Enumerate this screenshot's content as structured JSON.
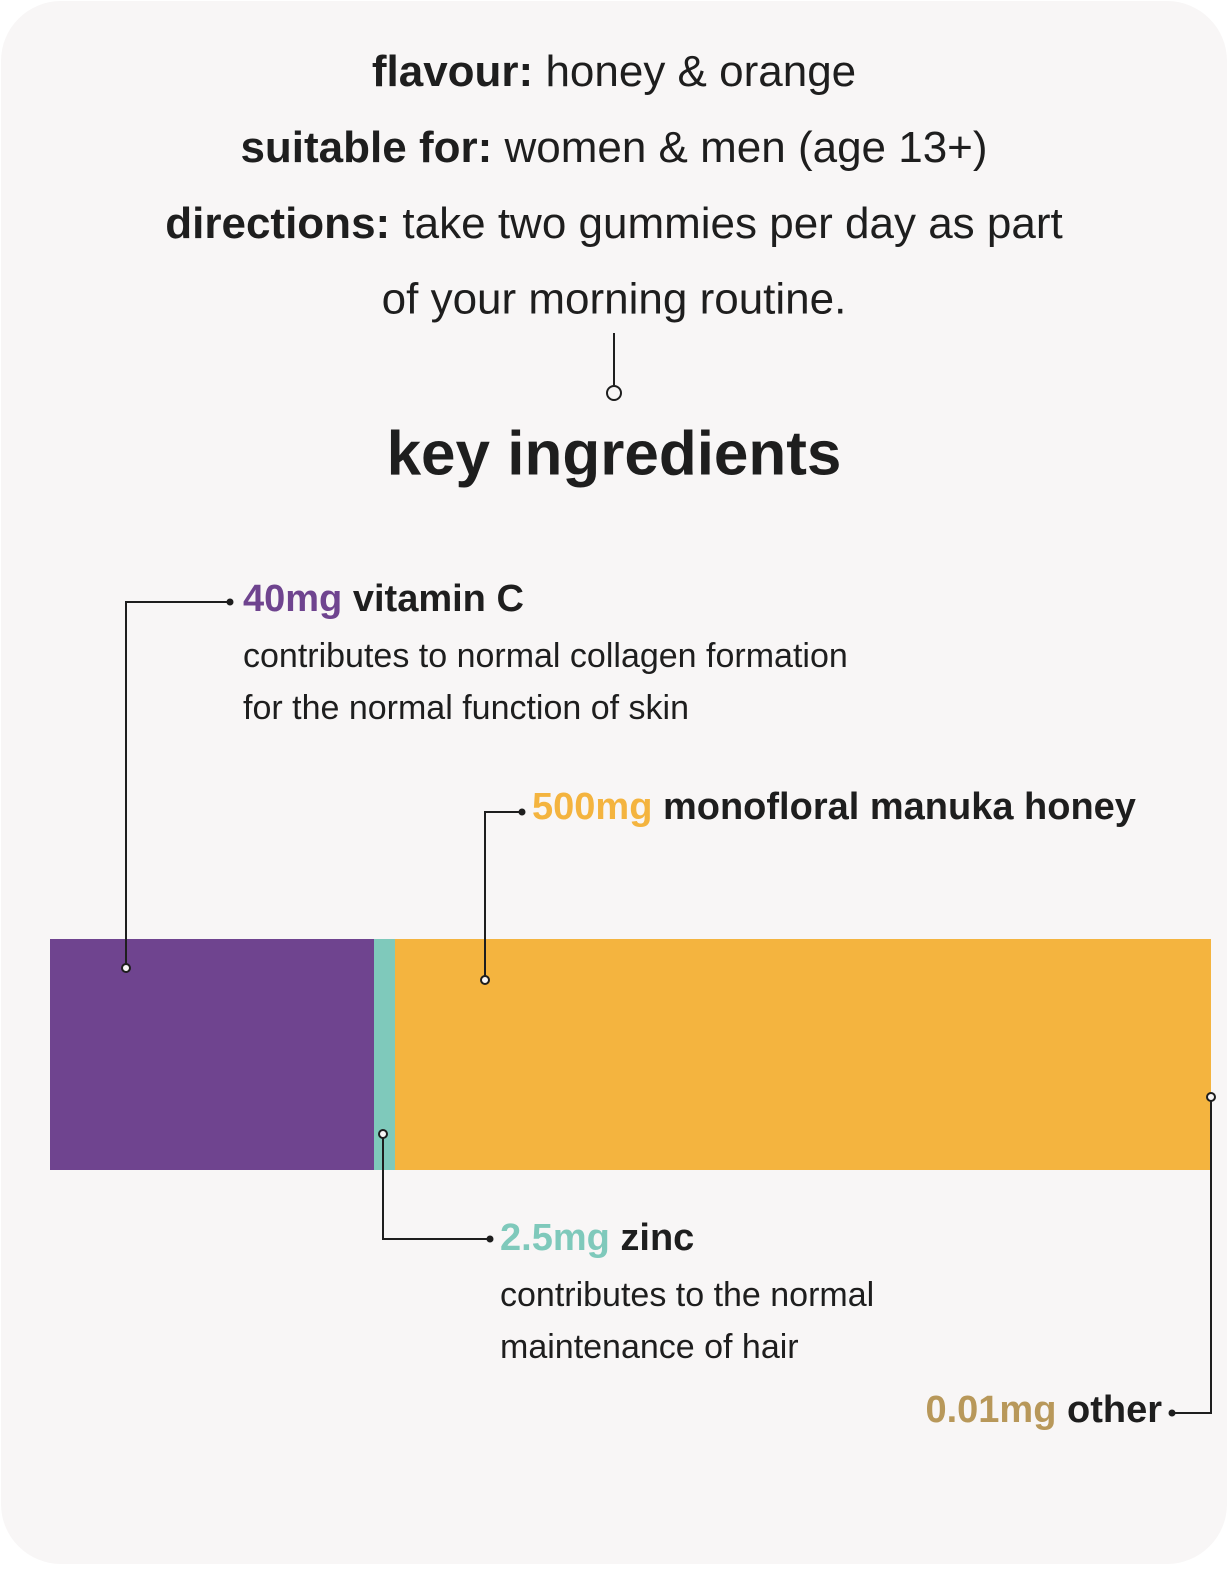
{
  "details": [
    {
      "label": "flavour:",
      "text": [
        "honey & orange"
      ]
    },
    {
      "label": "suitable for:",
      "text": [
        "women & men (age 13+)"
      ]
    },
    {
      "label": "directions:",
      "text": [
        "take two gummies per day as part",
        "of your morning routine."
      ]
    }
  ],
  "heading": "key ingredients",
  "ingredients": [
    {
      "amount": "40mg",
      "name": "vitamin C",
      "description": [
        "contributes to normal collagen formation",
        "for the normal function of skin"
      ]
    },
    {
      "amount": "500mg",
      "name": "monofloral manuka honey"
    },
    {
      "amount": "2.5mg",
      "name": "zinc",
      "description": [
        "contributes to the normal",
        "maintenance of hair"
      ]
    },
    {
      "amount": "0.01mg",
      "name": "other"
    }
  ]
}
